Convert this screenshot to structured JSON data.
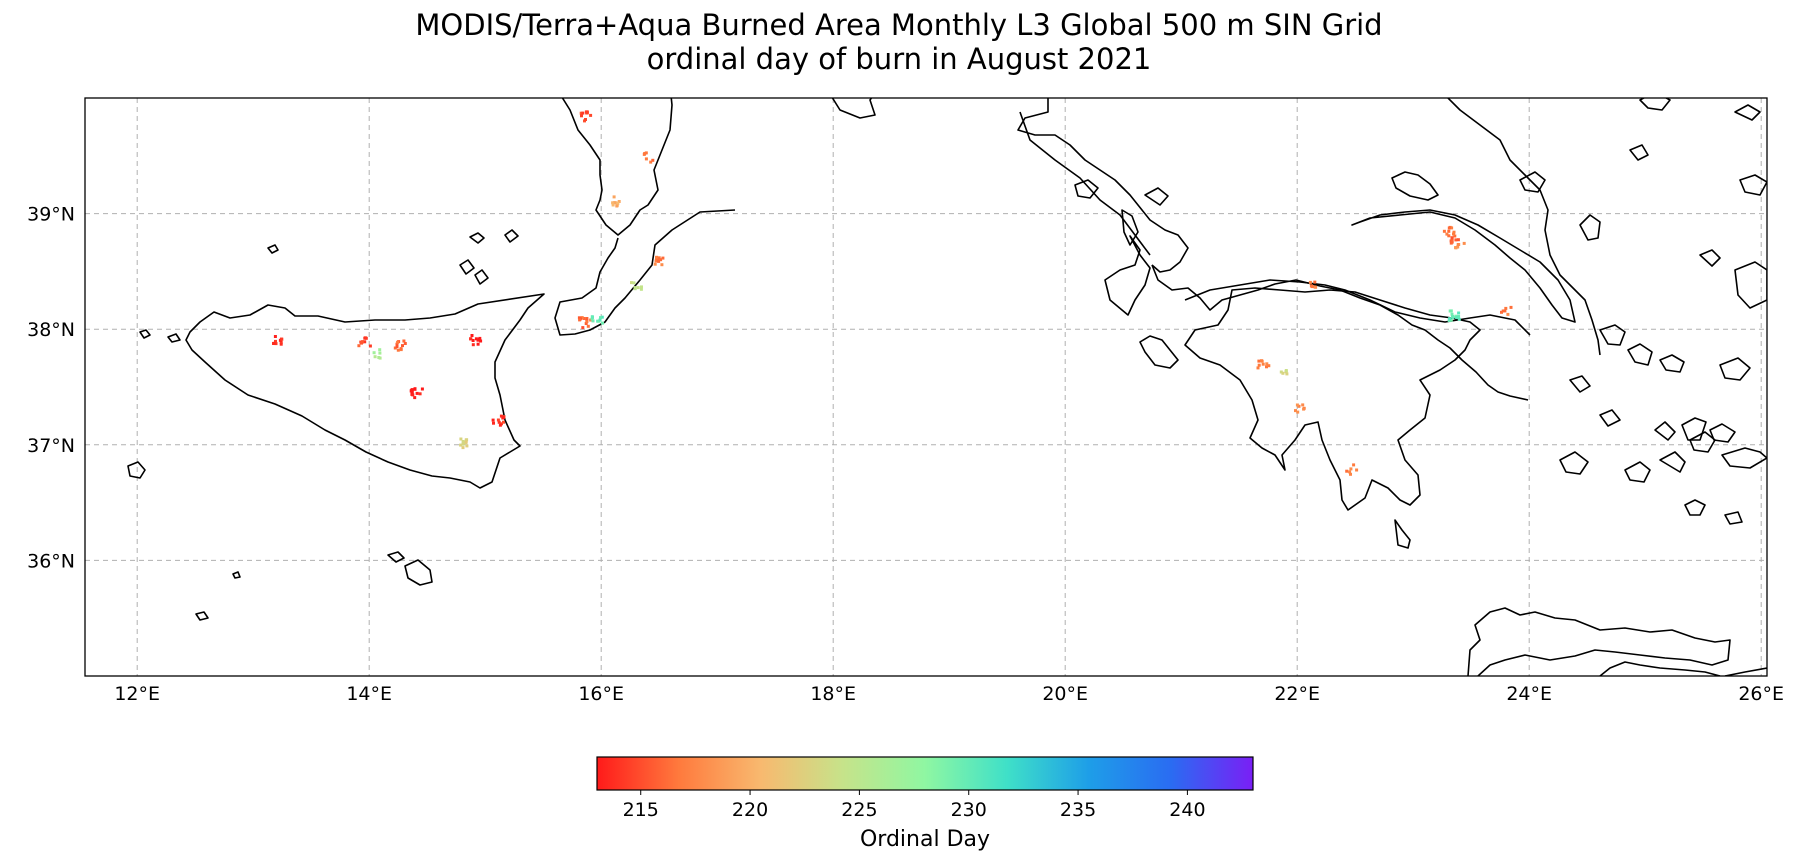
{
  "title_line1": "MODIS/Terra+Aqua Burned Area Monthly L3 Global 500 m SIN Grid",
  "title_line2": "ordinal day of burn in August 2021",
  "map": {
    "lon_range": [
      11.55,
      26.05
    ],
    "lat_range": [
      35.0,
      40.0
    ],
    "lon_ticks": [
      12,
      14,
      16,
      18,
      20,
      22,
      24,
      26
    ],
    "lat_ticks": [
      36,
      37,
      38,
      39
    ],
    "lon_tick_labels": [
      "12°E",
      "14°E",
      "16°E",
      "18°E",
      "20°E",
      "22°E",
      "24°E",
      "26°E"
    ],
    "lat_tick_labels": [
      "36°N",
      "37°N",
      "38°N",
      "39°N"
    ],
    "gridlines": true
  },
  "colorbar": {
    "label": "Ordinal Day",
    "range": [
      213,
      243
    ],
    "ticks": [
      215,
      220,
      225,
      230,
      235,
      240
    ],
    "tick_labels": [
      "215",
      "220",
      "225",
      "230",
      "235",
      "240"
    ],
    "colormap": [
      "#ff1a1a",
      "#ff7a3d",
      "#f8b96f",
      "#c6e38a",
      "#8ff7a2",
      "#3fe0c8",
      "#1e9ee8",
      "#2a6cf2",
      "#7a1ff5"
    ]
  },
  "burned_areas": [
    {
      "lon": 23.3,
      "lat": 38.86,
      "day": 217
    },
    {
      "lon": 23.35,
      "lat": 38.8,
      "day": 216
    },
    {
      "lon": 23.38,
      "lat": 38.74,
      "day": 218
    },
    {
      "lon": 23.34,
      "lat": 38.13,
      "day": 230
    },
    {
      "lon": 23.8,
      "lat": 38.17,
      "day": 217
    },
    {
      "lon": 21.7,
      "lat": 37.7,
      "day": 217
    },
    {
      "lon": 21.85,
      "lat": 37.66,
      "day": 223
    },
    {
      "lon": 22.45,
      "lat": 36.8,
      "day": 217
    },
    {
      "lon": 22.0,
      "lat": 37.33,
      "day": 218
    },
    {
      "lon": 22.15,
      "lat": 38.38,
      "day": 217
    },
    {
      "lon": 14.25,
      "lat": 37.87,
      "day": 216
    },
    {
      "lon": 14.9,
      "lat": 37.92,
      "day": 213
    },
    {
      "lon": 13.95,
      "lat": 37.9,
      "day": 215
    },
    {
      "lon": 14.4,
      "lat": 37.46,
      "day": 213
    },
    {
      "lon": 14.8,
      "lat": 37.02,
      "day": 223
    },
    {
      "lon": 14.05,
      "lat": 37.8,
      "day": 226
    },
    {
      "lon": 15.85,
      "lat": 38.07,
      "day": 216
    },
    {
      "lon": 15.95,
      "lat": 38.1,
      "day": 230
    },
    {
      "lon": 16.3,
      "lat": 38.4,
      "day": 224
    },
    {
      "lon": 16.5,
      "lat": 38.6,
      "day": 217
    },
    {
      "lon": 16.1,
      "lat": 39.12,
      "day": 220
    },
    {
      "lon": 16.4,
      "lat": 39.5,
      "day": 216
    },
    {
      "lon": 15.85,
      "lat": 39.85,
      "day": 215
    },
    {
      "lon": 15.1,
      "lat": 37.22,
      "day": 214
    },
    {
      "lon": 13.2,
      "lat": 37.92,
      "day": 214
    }
  ]
}
